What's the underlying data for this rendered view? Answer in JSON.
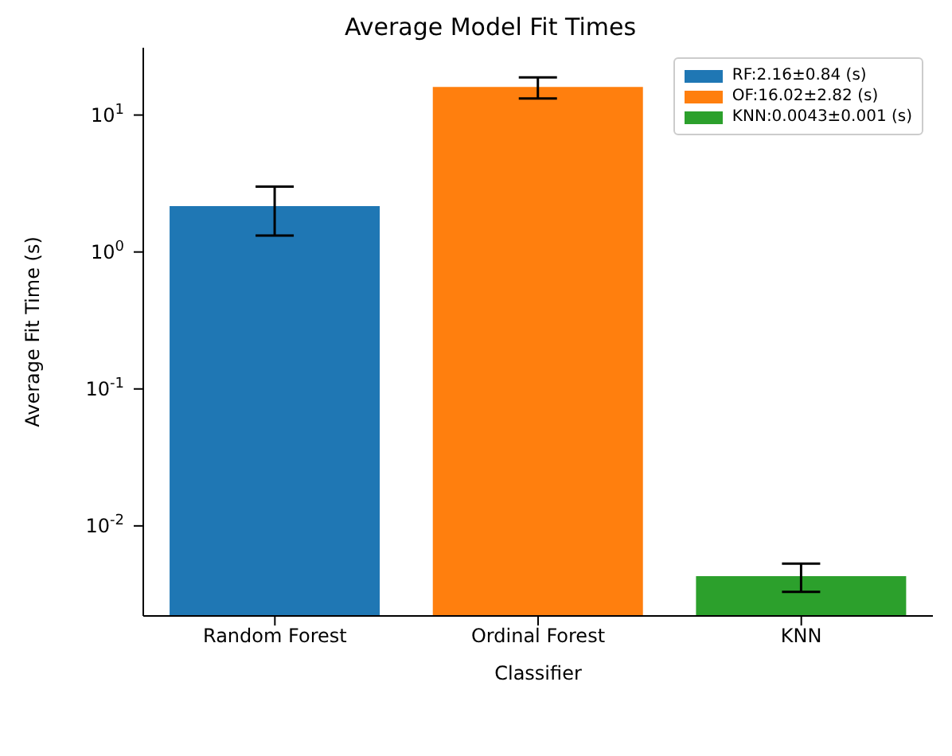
{
  "chart_data": {
    "type": "bar",
    "title": "Average Model Fit Times",
    "xlabel": "Classifier",
    "ylabel": "Average Fit Time (s)",
    "categories": [
      "Random Forest",
      "Ordinal Forest",
      "KNN"
    ],
    "series": [
      {
        "name": "RF:2.16±0.84 (s)",
        "color": "#1f77b4",
        "values": [
          2.16,
          null,
          null
        ],
        "errors": [
          0.84,
          null,
          null
        ]
      },
      {
        "name": "OF:16.02±2.82 (s)",
        "color": "#ff7f0e",
        "values": [
          null,
          16.02,
          null
        ],
        "errors": [
          null,
          2.82,
          null
        ]
      },
      {
        "name": "KNN:0.0043±0.001 (s)",
        "color": "#2ca02c",
        "values": [
          null,
          null,
          0.0043
        ],
        "errors": [
          null,
          null,
          0.001
        ]
      }
    ],
    "log": "y",
    "ylim": [
      0.0022,
      31
    ],
    "yticks": [
      {
        "value": 0.01,
        "label": "10$^{-2}$"
      },
      {
        "value": 0.1,
        "label": "10$^{-1}$"
      },
      {
        "value": 1,
        "label": "10$^{0}$"
      },
      {
        "value": 10,
        "label": "10$^{1}$"
      }
    ],
    "legend": "top right",
    "grid": false
  }
}
